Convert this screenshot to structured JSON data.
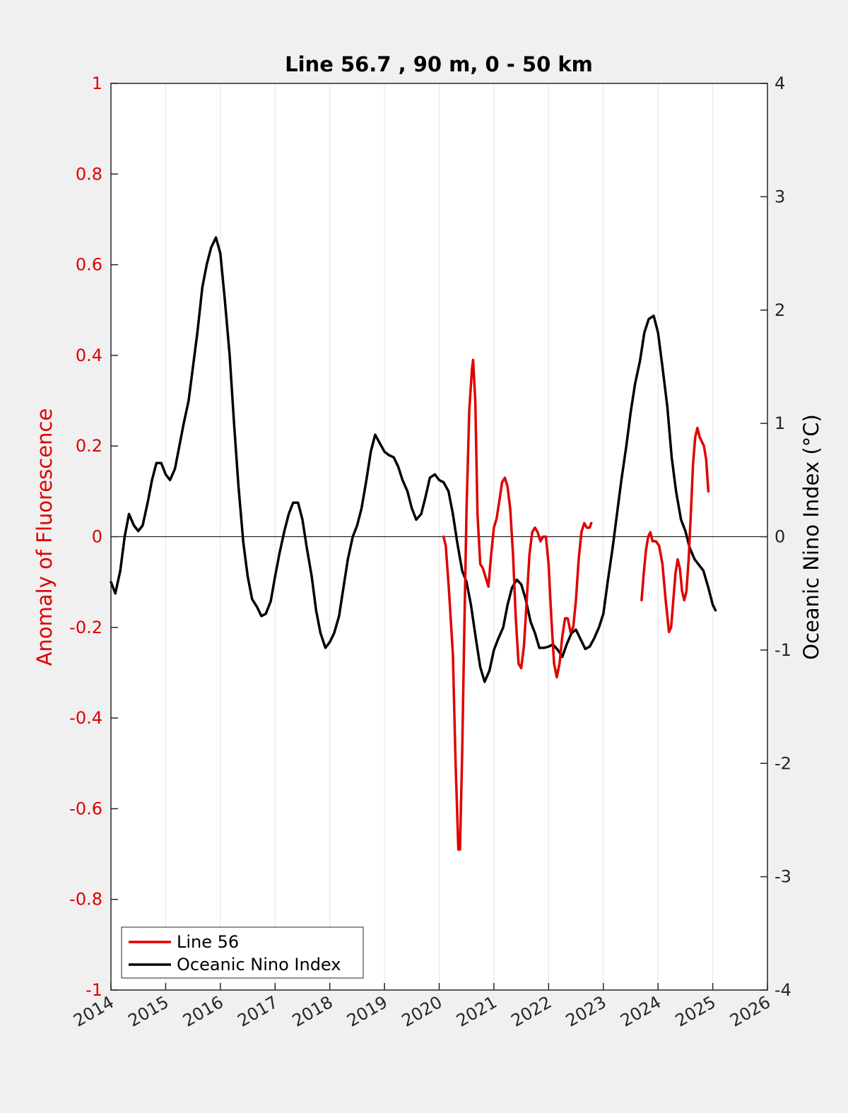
{
  "chart_data": {
    "type": "line",
    "title": "Line 56.7 , 90 m, 0 - 50 km",
    "xlim": [
      2014,
      2026
    ],
    "x_ticks": [
      "2014",
      "2015",
      "2016",
      "2017",
      "2018",
      "2019",
      "2020",
      "2021",
      "2022",
      "2023",
      "2024",
      "2025",
      "2026"
    ],
    "y_left": {
      "label": "Anomaly of Fluorescence",
      "lim": [
        -1,
        1
      ],
      "ticks": [
        "-1",
        "-0.8",
        "-0.6",
        "-0.4",
        "-0.2",
        "0",
        "0.2",
        "0.4",
        "0.6",
        "0.8",
        "1"
      ],
      "color": "#e00000"
    },
    "y_right": {
      "label": "Oceanic Nino Index (°C)",
      "lim": [
        -4,
        4
      ],
      "ticks": [
        "-4",
        "-3",
        "-2",
        "-1",
        "0",
        "1",
        "2",
        "3",
        "4"
      ],
      "color": "#000000"
    },
    "grid": "vertical",
    "zero_line": true,
    "legend": {
      "placement": "bottom-left",
      "entries": [
        {
          "label": "Line 56",
          "color": "#e00000"
        },
        {
          "label": "Oceanic Nino Index",
          "color": "#000000"
        }
      ]
    },
    "series": [
      {
        "name": "Line 56",
        "axis": "left",
        "color": "#e00000",
        "segments": [
          [
            [
              2020.08,
              0.0
            ],
            [
              2020.12,
              -0.02
            ],
            [
              2020.18,
              -0.12
            ],
            [
              2020.25,
              -0.26
            ],
            [
              2020.3,
              -0.5
            ],
            [
              2020.35,
              -0.69
            ],
            [
              2020.38,
              -0.69
            ],
            [
              2020.42,
              -0.48
            ],
            [
              2020.46,
              -0.2
            ],
            [
              2020.5,
              0.06
            ],
            [
              2020.55,
              0.28
            ],
            [
              2020.6,
              0.37
            ],
            [
              2020.62,
              0.39
            ],
            [
              2020.66,
              0.3
            ],
            [
              2020.7,
              0.05
            ],
            [
              2020.75,
              -0.06
            ],
            [
              2020.8,
              -0.07
            ],
            [
              2020.85,
              -0.09
            ],
            [
              2020.9,
              -0.11
            ],
            [
              2020.95,
              -0.04
            ],
            [
              2021.0,
              0.02
            ],
            [
              2021.05,
              0.04
            ],
            [
              2021.1,
              0.08
            ],
            [
              2021.15,
              0.12
            ],
            [
              2021.2,
              0.13
            ],
            [
              2021.25,
              0.11
            ],
            [
              2021.3,
              0.06
            ],
            [
              2021.35,
              -0.04
            ],
            [
              2021.4,
              -0.18
            ],
            [
              2021.45,
              -0.28
            ],
            [
              2021.5,
              -0.29
            ],
            [
              2021.55,
              -0.24
            ],
            [
              2021.6,
              -0.14
            ],
            [
              2021.65,
              -0.04
            ],
            [
              2021.7,
              0.01
            ],
            [
              2021.75,
              0.02
            ],
            [
              2021.8,
              0.01
            ],
            [
              2021.85,
              -0.01
            ],
            [
              2021.9,
              0.0
            ],
            [
              2021.95,
              0.0
            ],
            [
              2022.0,
              -0.06
            ],
            [
              2022.05,
              -0.18
            ],
            [
              2022.1,
              -0.28
            ],
            [
              2022.15,
              -0.31
            ],
            [
              2022.2,
              -0.28
            ],
            [
              2022.25,
              -0.22
            ],
            [
              2022.3,
              -0.18
            ],
            [
              2022.35,
              -0.18
            ],
            [
              2022.4,
              -0.21
            ],
            [
              2022.45,
              -0.2
            ],
            [
              2022.5,
              -0.14
            ],
            [
              2022.55,
              -0.05
            ],
            [
              2022.6,
              0.01
            ],
            [
              2022.65,
              0.03
            ],
            [
              2022.7,
              0.02
            ],
            [
              2022.75,
              0.02
            ],
            [
              2022.78,
              0.03
            ]
          ],
          [
            [
              2023.7,
              -0.14
            ],
            [
              2023.74,
              -0.08
            ],
            [
              2023.78,
              -0.03
            ],
            [
              2023.82,
              0.0
            ],
            [
              2023.86,
              0.01
            ],
            [
              2023.9,
              -0.01
            ],
            [
              2023.96,
              -0.01
            ],
            [
              2024.02,
              -0.02
            ],
            [
              2024.08,
              -0.06
            ],
            [
              2024.14,
              -0.14
            ],
            [
              2024.2,
              -0.21
            ],
            [
              2024.24,
              -0.2
            ],
            [
              2024.28,
              -0.14
            ],
            [
              2024.32,
              -0.08
            ],
            [
              2024.36,
              -0.05
            ],
            [
              2024.4,
              -0.07
            ],
            [
              2024.44,
              -0.12
            ],
            [
              2024.48,
              -0.14
            ],
            [
              2024.52,
              -0.12
            ],
            [
              2024.56,
              -0.05
            ],
            [
              2024.6,
              0.05
            ],
            [
              2024.64,
              0.16
            ],
            [
              2024.68,
              0.22
            ],
            [
              2024.72,
              0.24
            ],
            [
              2024.76,
              0.22
            ],
            [
              2024.8,
              0.21
            ],
            [
              2024.84,
              0.2
            ],
            [
              2024.88,
              0.17
            ],
            [
              2024.92,
              0.1
            ]
          ]
        ]
      },
      {
        "name": "Oceanic Nino Index",
        "axis": "right",
        "color": "#000000",
        "segments": [
          [
            [
              2014.0,
              -0.4
            ],
            [
              2014.08,
              -0.5
            ],
            [
              2014.17,
              -0.3
            ],
            [
              2014.25,
              0.0
            ],
            [
              2014.33,
              0.2
            ],
            [
              2014.42,
              0.1
            ],
            [
              2014.5,
              0.05
            ],
            [
              2014.58,
              0.1
            ],
            [
              2014.67,
              0.3
            ],
            [
              2014.75,
              0.5
            ],
            [
              2014.83,
              0.65
            ],
            [
              2014.92,
              0.65
            ],
            [
              2015.0,
              0.55
            ],
            [
              2015.08,
              0.5
            ],
            [
              2015.17,
              0.6
            ],
            [
              2015.25,
              0.8
            ],
            [
              2015.33,
              1.0
            ],
            [
              2015.42,
              1.2
            ],
            [
              2015.5,
              1.5
            ],
            [
              2015.58,
              1.8
            ],
            [
              2015.67,
              2.2
            ],
            [
              2015.75,
              2.4
            ],
            [
              2015.83,
              2.55
            ],
            [
              2015.92,
              2.64
            ],
            [
              2016.0,
              2.5
            ],
            [
              2016.08,
              2.1
            ],
            [
              2016.17,
              1.6
            ],
            [
              2016.25,
              1.0
            ],
            [
              2016.33,
              0.45
            ],
            [
              2016.42,
              -0.05
            ],
            [
              2016.5,
              -0.35
            ],
            [
              2016.58,
              -0.55
            ],
            [
              2016.67,
              -0.62
            ],
            [
              2016.75,
              -0.7
            ],
            [
              2016.83,
              -0.68
            ],
            [
              2016.92,
              -0.57
            ],
            [
              2017.0,
              -0.35
            ],
            [
              2017.08,
              -0.15
            ],
            [
              2017.17,
              0.05
            ],
            [
              2017.25,
              0.2
            ],
            [
              2017.33,
              0.3
            ],
            [
              2017.42,
              0.3
            ],
            [
              2017.5,
              0.15
            ],
            [
              2017.58,
              -0.1
            ],
            [
              2017.67,
              -0.35
            ],
            [
              2017.75,
              -0.65
            ],
            [
              2017.83,
              -0.85
            ],
            [
              2017.92,
              -0.98
            ],
            [
              2018.0,
              -0.93
            ],
            [
              2018.08,
              -0.85
            ],
            [
              2018.17,
              -0.7
            ],
            [
              2018.25,
              -0.45
            ],
            [
              2018.33,
              -0.2
            ],
            [
              2018.42,
              0.0
            ],
            [
              2018.5,
              0.1
            ],
            [
              2018.58,
              0.25
            ],
            [
              2018.67,
              0.5
            ],
            [
              2018.75,
              0.75
            ],
            [
              2018.83,
              0.9
            ],
            [
              2018.92,
              0.82
            ],
            [
              2019.0,
              0.75
            ],
            [
              2019.08,
              0.72
            ],
            [
              2019.17,
              0.7
            ],
            [
              2019.25,
              0.62
            ],
            [
              2019.33,
              0.5
            ],
            [
              2019.42,
              0.4
            ],
            [
              2019.5,
              0.25
            ],
            [
              2019.58,
              0.15
            ],
            [
              2019.67,
              0.2
            ],
            [
              2019.75,
              0.35
            ],
            [
              2019.83,
              0.52
            ],
            [
              2019.92,
              0.55
            ],
            [
              2020.0,
              0.5
            ],
            [
              2020.08,
              0.48
            ],
            [
              2020.17,
              0.4
            ],
            [
              2020.25,
              0.2
            ],
            [
              2020.33,
              -0.05
            ],
            [
              2020.42,
              -0.3
            ],
            [
              2020.5,
              -0.4
            ],
            [
              2020.58,
              -0.6
            ],
            [
              2020.67,
              -0.9
            ],
            [
              2020.75,
              -1.15
            ],
            [
              2020.83,
              -1.28
            ],
            [
              2020.92,
              -1.18
            ],
            [
              2021.0,
              -1.0
            ],
            [
              2021.08,
              -0.9
            ],
            [
              2021.17,
              -0.8
            ],
            [
              2021.25,
              -0.6
            ],
            [
              2021.33,
              -0.45
            ],
            [
              2021.42,
              -0.38
            ],
            [
              2021.5,
              -0.42
            ],
            [
              2021.58,
              -0.55
            ],
            [
              2021.67,
              -0.75
            ],
            [
              2021.75,
              -0.85
            ],
            [
              2021.83,
              -0.98
            ],
            [
              2021.92,
              -0.98
            ],
            [
              2022.0,
              -0.97
            ],
            [
              2022.08,
              -0.95
            ],
            [
              2022.17,
              -1.0
            ],
            [
              2022.25,
              -1.06
            ],
            [
              2022.33,
              -0.95
            ],
            [
              2022.42,
              -0.85
            ],
            [
              2022.5,
              -0.82
            ],
            [
              2022.58,
              -0.9
            ],
            [
              2022.67,
              -0.99
            ],
            [
              2022.75,
              -0.97
            ],
            [
              2022.83,
              -0.9
            ],
            [
              2022.92,
              -0.8
            ],
            [
              2023.0,
              -0.68
            ],
            [
              2023.08,
              -0.4
            ],
            [
              2023.17,
              -0.1
            ],
            [
              2023.25,
              0.2
            ],
            [
              2023.33,
              0.5
            ],
            [
              2023.42,
              0.8
            ],
            [
              2023.5,
              1.1
            ],
            [
              2023.58,
              1.35
            ],
            [
              2023.67,
              1.55
            ],
            [
              2023.75,
              1.8
            ],
            [
              2023.83,
              1.92
            ],
            [
              2023.92,
              1.95
            ],
            [
              2024.0,
              1.8
            ],
            [
              2024.08,
              1.5
            ],
            [
              2024.17,
              1.15
            ],
            [
              2024.25,
              0.7
            ],
            [
              2024.33,
              0.4
            ],
            [
              2024.42,
              0.15
            ],
            [
              2024.5,
              0.05
            ],
            [
              2024.58,
              -0.1
            ],
            [
              2024.67,
              -0.2
            ],
            [
              2024.75,
              -0.25
            ],
            [
              2024.83,
              -0.3
            ],
            [
              2024.92,
              -0.45
            ],
            [
              2025.0,
              -0.6
            ],
            [
              2025.05,
              -0.65
            ]
          ]
        ]
      }
    ]
  }
}
